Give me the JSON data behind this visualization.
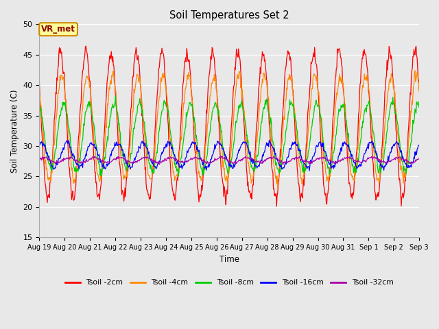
{
  "title": "Soil Temperatures Set 2",
  "xlabel": "Time",
  "ylabel": "Soil Temperature (C)",
  "ylim": [
    15,
    50
  ],
  "yticks": [
    15,
    20,
    25,
    30,
    35,
    40,
    45,
    50
  ],
  "fig_facecolor": "#e8e8e8",
  "plot_bg_color": "#e8e8e8",
  "annotation_text": "VR_met",
  "annotation_bg": "#ffff99",
  "annotation_border": "#cc8800",
  "series_colors": {
    "Tsoil -2cm": "#ff0000",
    "Tsoil -4cm": "#ff8800",
    "Tsoil -8cm": "#00cc00",
    "Tsoil -16cm": "#0000ff",
    "Tsoil -32cm": "#aa00aa"
  },
  "n_days": 15,
  "samples_per_day": 48,
  "start_day": 19,
  "amplitudes": [
    12.0,
    8.5,
    5.5,
    2.0,
    0.4
  ],
  "means": [
    33.5,
    33.0,
    31.5,
    28.5,
    27.7
  ],
  "phase_shifts": [
    0.0,
    0.05,
    0.12,
    0.25,
    0.35
  ],
  "noise_levels": [
    0.6,
    0.5,
    0.4,
    0.25,
    0.12
  ]
}
